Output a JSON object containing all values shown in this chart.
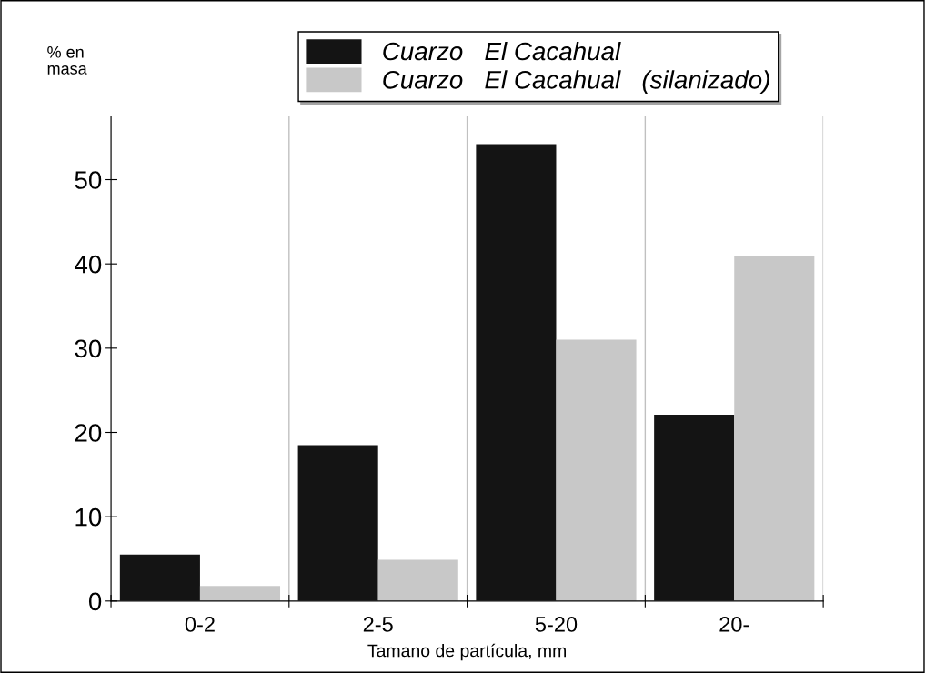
{
  "chart_data": {
    "type": "bar",
    "xlabel": "Tamano de partícula, mm",
    "ylabel": "% en\nmasa",
    "categories": [
      "0-2",
      "2-5",
      "5-20",
      "20-"
    ],
    "series": [
      {
        "name": "Cuarzo   El Cacahual",
        "color": "#141414",
        "values": [
          5.5,
          18.5,
          54.2,
          22.1
        ]
      },
      {
        "name": "Cuarzo   El Cacahual   (silanizado)",
        "color": "#c8c8c8",
        "values": [
          1.8,
          4.9,
          31.0,
          40.9
        ]
      }
    ],
    "ylim": [
      0,
      57.5
    ],
    "yticks": [
      0,
      10,
      20,
      30,
      40,
      50
    ],
    "grid": "x",
    "legend": "top"
  }
}
